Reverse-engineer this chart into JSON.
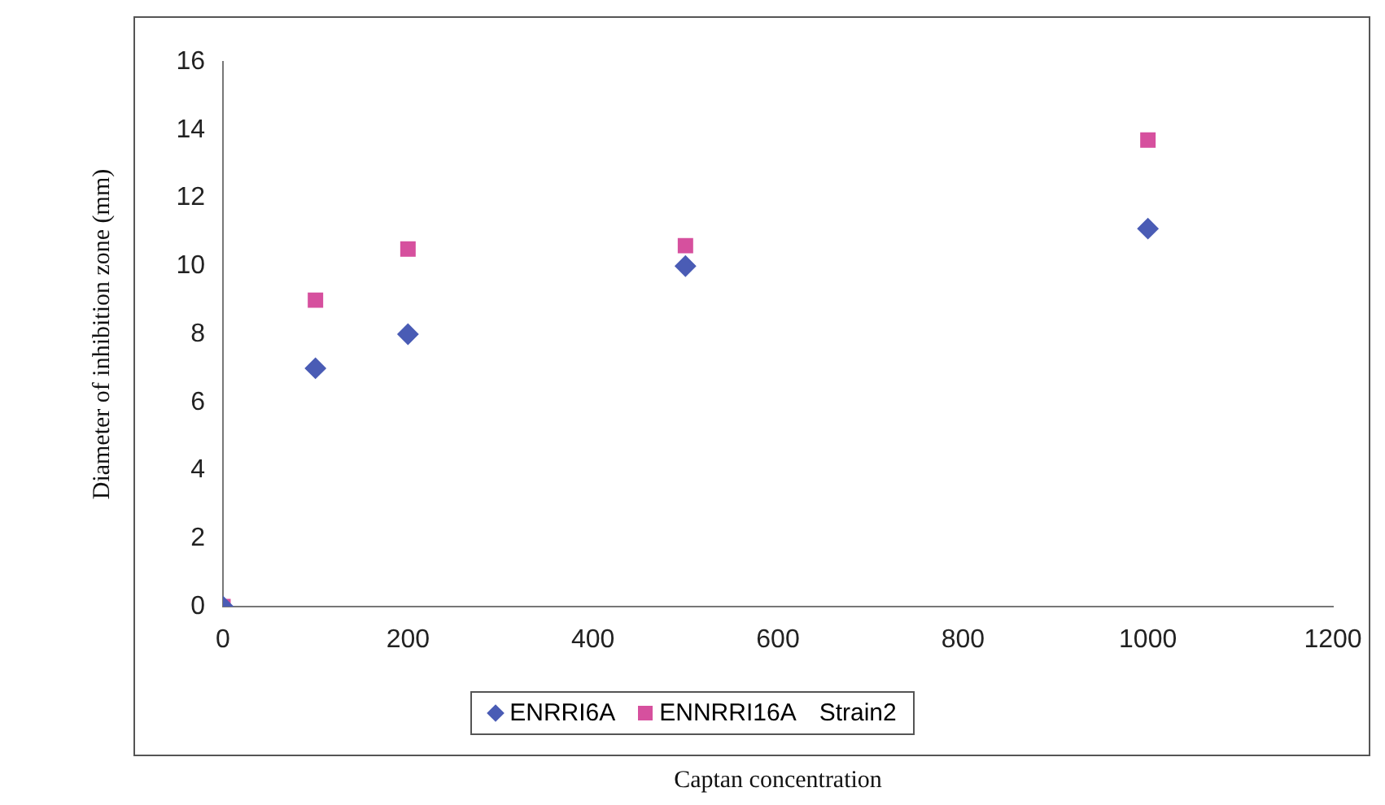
{
  "chart_data": {
    "type": "scatter",
    "xlabel": "Captan concentration",
    "ylabel": "Diameter of inhibition zone (mm)",
    "xlim": [
      0,
      1200
    ],
    "xticks": [
      0,
      200,
      400,
      600,
      800,
      1000,
      1200
    ],
    "ylim": [
      0,
      16
    ],
    "yticks": [
      0,
      2,
      4,
      6,
      8,
      10,
      12,
      14,
      16
    ],
    "grid": false,
    "legend": "bottom",
    "series": [
      {
        "name": "ENRRI6A",
        "color": "#4a5cb5",
        "marker": "diamond",
        "x": [
          0,
          100,
          200,
          500,
          1000
        ],
        "values": [
          0,
          7,
          8,
          10,
          11.1
        ]
      },
      {
        "name": "ENNRRI16A",
        "color": "#d6509e",
        "marker": "square",
        "x": [
          0,
          100,
          200,
          500,
          1000
        ],
        "values": [
          0,
          9,
          10.5,
          10.6,
          13.7
        ]
      },
      {
        "name": "Strain2",
        "marker": "none"
      }
    ]
  }
}
